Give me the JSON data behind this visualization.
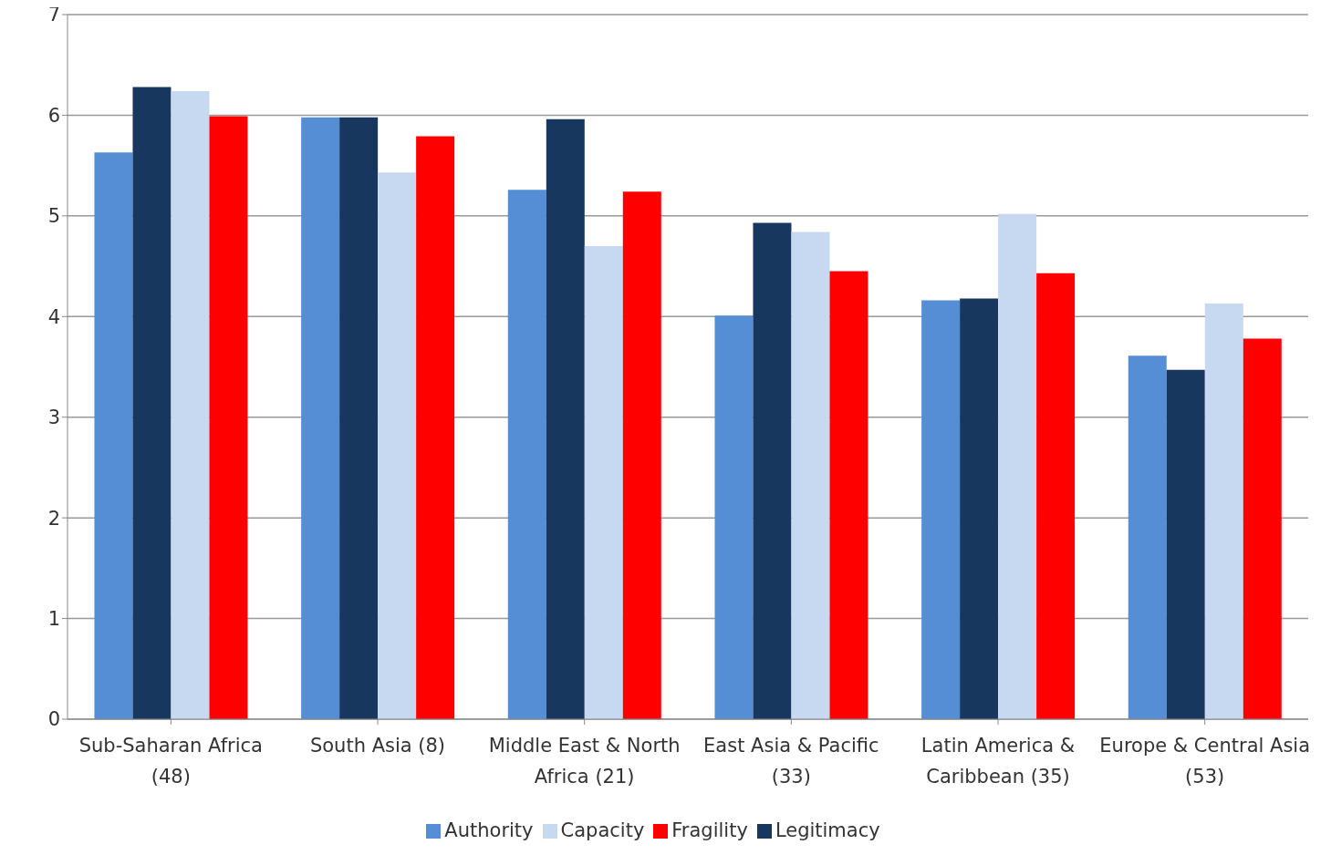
{
  "chart_data": {
    "type": "bar",
    "categories": [
      "Sub-Saharan Africa (48)",
      "South Asia (8)",
      "Middle East & North Africa (21)",
      "East Asia & Pacific (33)",
      "Latin America & Caribbean (35)",
      "Europe & Central Asia (53)"
    ],
    "series": [
      {
        "name": "Authority",
        "color": "#558ed5",
        "values": [
          5.63,
          5.98,
          5.26,
          4.01,
          4.16,
          3.61
        ]
      },
      {
        "name": "Legitimacy",
        "color": "#17375e",
        "values": [
          6.28,
          5.98,
          5.96,
          4.93,
          4.18,
          3.47
        ]
      },
      {
        "name": "Capacity",
        "color": "#c6d9f1",
        "values": [
          6.24,
          5.43,
          4.7,
          4.84,
          5.02,
          4.13
        ]
      },
      {
        "name": "Fragility",
        "color": "#ff0000",
        "values": [
          5.99,
          5.79,
          5.24,
          4.45,
          4.43,
          3.78
        ]
      }
    ],
    "ylim": [
      0,
      7
    ],
    "yticks": [
      0,
      1,
      2,
      3,
      4,
      5,
      6,
      7
    ],
    "grid": "y",
    "legend": "bottom"
  }
}
